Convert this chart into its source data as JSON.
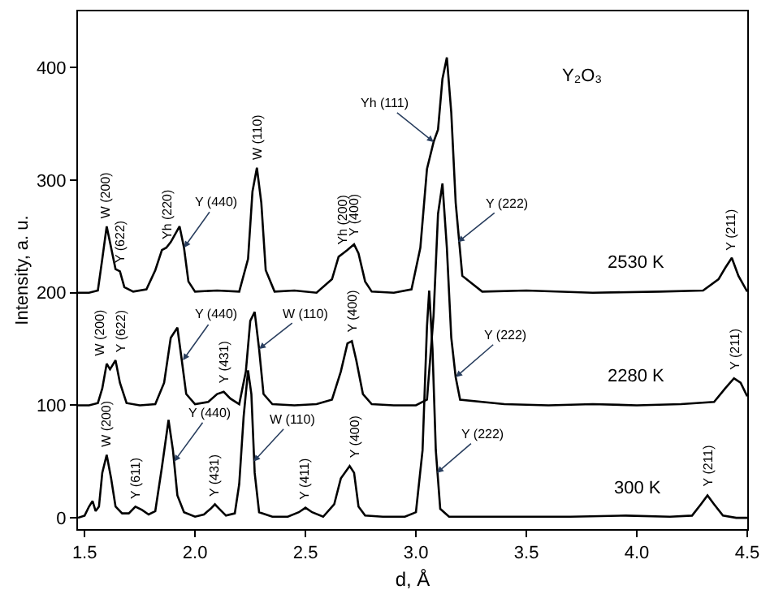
{
  "chart_data": {
    "type": "line",
    "xlabel": "d, Å",
    "ylabel": "Intensity, a. u.",
    "xlim": [
      1.47,
      4.5
    ],
    "xticks": [
      {
        "value": 1.5,
        "label": "1.5"
      },
      {
        "value": 2,
        "label": "2.0"
      },
      {
        "value": 2.5,
        "label": "2.5"
      },
      {
        "value": 3,
        "label": "3.0"
      },
      {
        "value": 3.5,
        "label": "3.5"
      },
      {
        "value": 4,
        "label": "4.0"
      },
      {
        "value": 4.5,
        "label": "4.5"
      }
    ],
    "ylim": [
      -10,
      450
    ],
    "yticks": [
      0,
      100,
      200,
      300,
      400
    ],
    "marker": "none",
    "line_style": "solid",
    "series": [
      {
        "name": "2530 K",
        "color": "#000000",
        "x": [
          1.47,
          1.52,
          1.56,
          1.58,
          1.6,
          1.62,
          1.64,
          1.66,
          1.68,
          1.72,
          1.78,
          1.82,
          1.85,
          1.87,
          1.89,
          1.93,
          1.95,
          1.97,
          2.0,
          2.1,
          2.2,
          2.24,
          2.26,
          2.28,
          2.3,
          2.32,
          2.36,
          2.45,
          2.55,
          2.62,
          2.65,
          2.67,
          2.69,
          2.72,
          2.74,
          2.77,
          2.8,
          2.9,
          2.98,
          3.02,
          3.05,
          3.08,
          3.1,
          3.12,
          3.14,
          3.16,
          3.18,
          3.21,
          3.3,
          3.5,
          3.8,
          4.1,
          4.3,
          4.37,
          4.4,
          4.43,
          4.46,
          4.5
        ],
        "values": [
          200,
          200,
          202,
          230,
          259,
          240,
          221,
          219,
          205,
          201,
          203,
          220,
          238,
          240,
          245,
          259,
          240,
          210,
          201,
          202,
          201,
          230,
          290,
          311,
          280,
          220,
          201,
          202,
          200,
          212,
          232,
          235,
          238,
          243,
          235,
          210,
          201,
          200,
          203,
          240,
          310,
          334,
          345,
          390,
          409,
          360,
          280,
          215,
          201,
          202,
          200,
          201,
          202,
          212,
          222,
          231,
          215,
          201
        ]
      },
      {
        "name": "2280 K",
        "color": "#000000",
        "x": [
          1.47,
          1.52,
          1.56,
          1.58,
          1.6,
          1.615,
          1.64,
          1.66,
          1.69,
          1.75,
          1.82,
          1.86,
          1.89,
          1.92,
          1.94,
          1.96,
          2.0,
          2.06,
          2.1,
          2.13,
          2.16,
          2.2,
          2.23,
          2.25,
          2.27,
          2.29,
          2.31,
          2.35,
          2.45,
          2.55,
          2.62,
          2.66,
          2.69,
          2.71,
          2.73,
          2.76,
          2.8,
          2.9,
          3.0,
          3.05,
          3.08,
          3.1,
          3.12,
          3.14,
          3.16,
          3.18,
          3.2,
          3.4,
          3.6,
          3.8,
          4.0,
          4.2,
          4.35,
          4.4,
          4.44,
          4.47,
          4.5
        ],
        "values": [
          100,
          100,
          102,
          115,
          137,
          132,
          140,
          120,
          102,
          100,
          101,
          120,
          160,
          169,
          140,
          110,
          101,
          103,
          110,
          112,
          106,
          101,
          130,
          175,
          183,
          150,
          110,
          101,
          100,
          101,
          105,
          130,
          155,
          157,
          140,
          110,
          101,
          100,
          100,
          105,
          180,
          270,
          297,
          240,
          160,
          125,
          105,
          101,
          100,
          101,
          100,
          101,
          103,
          115,
          124,
          120,
          108
        ]
      },
      {
        "name": "300 K",
        "color": "#000000",
        "x": [
          1.47,
          1.5,
          1.52,
          1.536,
          1.55,
          1.565,
          1.58,
          1.6,
          1.62,
          1.64,
          1.67,
          1.7,
          1.73,
          1.76,
          1.79,
          1.82,
          1.85,
          1.88,
          1.9,
          1.92,
          1.95,
          2.0,
          2.04,
          2.07,
          2.09,
          2.11,
          2.14,
          2.18,
          2.2,
          2.22,
          2.24,
          2.255,
          2.27,
          2.29,
          2.35,
          2.42,
          2.47,
          2.5,
          2.53,
          2.58,
          2.63,
          2.66,
          2.7,
          2.72,
          2.74,
          2.77,
          2.85,
          2.95,
          3.0,
          3.03,
          3.05,
          3.06,
          3.075,
          3.09,
          3.11,
          3.15,
          3.3,
          3.5,
          3.7,
          3.95,
          4.15,
          4.25,
          4.29,
          4.32,
          4.35,
          4.39,
          4.45,
          4.5
        ],
        "values": [
          0,
          2,
          10,
          15,
          6,
          10,
          40,
          56,
          35,
          10,
          4,
          4,
          10,
          7,
          3,
          6,
          45,
          87,
          60,
          20,
          5,
          1,
          3,
          8,
          12,
          8,
          2,
          4,
          30,
          90,
          131,
          110,
          40,
          5,
          1,
          1,
          5,
          9,
          5,
          1,
          12,
          35,
          46,
          40,
          10,
          2,
          1,
          1,
          5,
          60,
          170,
          202,
          150,
          60,
          8,
          1,
          1,
          1,
          1,
          2,
          1,
          2,
          12,
          20,
          12,
          2,
          0,
          0
        ]
      }
    ],
    "annotations": [
      "Y₂O₃",
      {
        "text": "W (200)",
        "x": 1.6,
        "y": 259
      },
      {
        "text": "Y (622)",
        "x": 1.66,
        "y": 219
      },
      {
        "text": "Yh (220)",
        "x": 1.87,
        "y": 240
      },
      {
        "text": "W (110)",
        "x": 2.28,
        "y": 311
      },
      {
        "text": "Yh (200)",
        "x": 2.67,
        "y": 235
      },
      {
        "text": "Y (400)",
        "x": 2.72,
        "y": 243
      },
      {
        "text": "Y (211)",
        "x": 4.43,
        "y": 231
      },
      {
        "text": "Y (440)",
        "x": 1.95,
        "y": 240
      },
      {
        "text": "Yh (111)",
        "x": 3.08,
        "y": 334
      },
      {
        "text": "Y (222)",
        "x": 3.19,
        "y": 245
      },
      {
        "text": "W (200)",
        "x": 1.6,
        "y": 137
      },
      {
        "text": "Y (622)",
        "x": 1.64,
        "y": 140
      },
      {
        "text": "Y (431)",
        "x": 2.13,
        "y": 112
      },
      {
        "text": "Y (400)",
        "x": 2.71,
        "y": 157
      },
      {
        "text": "Y (211)",
        "x": 4.44,
        "y": 124
      },
      {
        "text": "Y (440)",
        "x": 1.945,
        "y": 140
      },
      {
        "text": "W (110)",
        "x": 2.29,
        "y": 150
      },
      {
        "text": "Y (222)",
        "x": 3.18,
        "y": 125
      },
      {
        "text": "W (200)",
        "x": 1.6,
        "y": 56
      },
      {
        "text": "Y (611)",
        "x": 1.73,
        "y": 10
      },
      {
        "text": "Y (431)",
        "x": 2.09,
        "y": 12
      },
      {
        "text": "Y (411)",
        "x": 2.5,
        "y": 9
      },
      {
        "text": "Y (400)",
        "x": 2.72,
        "y": 46
      },
      {
        "text": "Y (211)",
        "x": 4.32,
        "y": 20
      },
      {
        "text": "Y (440)",
        "x": 1.905,
        "y": 50
      },
      {
        "text": "W (110)",
        "x": 2.265,
        "y": 50
      },
      {
        "text": "Y (222)",
        "x": 3.095,
        "y": 40
      }
    ]
  }
}
